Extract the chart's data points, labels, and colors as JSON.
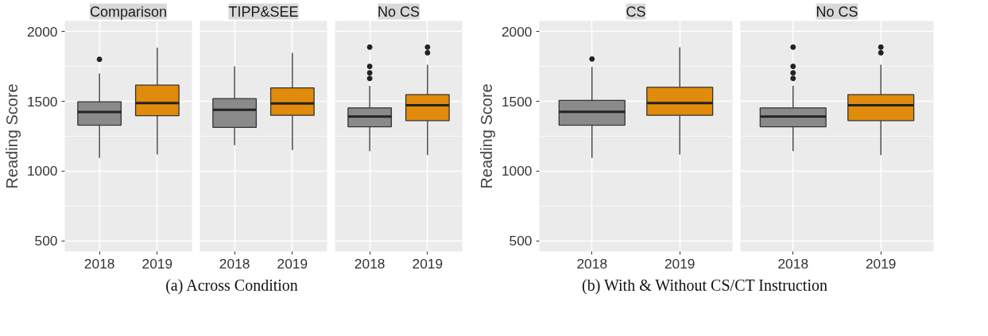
{
  "chart_data": [
    {
      "type": "box",
      "title": "Comparison",
      "ylabel": "Reading Score",
      "categories": [
        "2018",
        "2019"
      ],
      "colors": [
        "#8a8a8a",
        "#e08b0b"
      ],
      "ylim": [
        425,
        2075
      ],
      "yticks": [
        500,
        1000,
        1500,
        2000
      ],
      "grid": true,
      "annotations": [
        "(a) Across Condition"
      ],
      "boxes": [
        {
          "low": 1095,
          "q1": 1329,
          "median": 1424,
          "q3": 1497,
          "high": 1700,
          "outliers": [
            1801
          ]
        },
        {
          "low": 1119,
          "q1": 1397,
          "median": 1488,
          "q3": 1616,
          "high": 1885
        }
      ]
    },
    {
      "type": "box",
      "title": "TIPP&SEE",
      "categories": [
        "2018",
        "2019"
      ],
      "colors": [
        "#8a8a8a",
        "#e08b0b"
      ],
      "ylim": [
        425,
        2075
      ],
      "yticks": [
        500,
        1000,
        1500,
        2000
      ],
      "grid": true,
      "tick_labels": "x",
      "boxes": [
        {
          "low": 1186,
          "q1": 1313,
          "median": 1439,
          "q3": 1519,
          "high": 1750
        },
        {
          "low": 1150,
          "q1": 1400,
          "median": 1484,
          "q3": 1596,
          "high": 1848
        }
      ]
    },
    {
      "type": "box",
      "title": "No CS",
      "categories": [
        "2018",
        "2019"
      ],
      "colors": [
        "#8a8a8a",
        "#e08b0b"
      ],
      "ylim": [
        425,
        2075
      ],
      "yticks": [
        500,
        1000,
        1500,
        2000
      ],
      "grid": true,
      "tick_labels": "x",
      "boxes": [
        {
          "low": 1143,
          "q1": 1318,
          "median": 1391,
          "q3": 1453,
          "high": 1612,
          "outliers": [
            1888,
            1750,
            1704,
            1664
          ]
        },
        {
          "low": 1115,
          "q1": 1362,
          "median": 1472,
          "q3": 1548,
          "high": 1762,
          "outliers": [
            1888,
            1848
          ]
        }
      ]
    },
    {
      "type": "box",
      "title": "CS",
      "ylabel": "Reading Score",
      "categories": [
        "2018",
        "2019"
      ],
      "colors": [
        "#8a8a8a",
        "#e08b0b"
      ],
      "ylim": [
        425,
        2075
      ],
      "yticks": [
        500,
        1000,
        1500,
        2000
      ],
      "grid": true,
      "annotations": [
        "(b) With & Without CS/CT Instruction"
      ],
      "boxes": [
        {
          "low": 1095,
          "q1": 1329,
          "median": 1425,
          "q3": 1507,
          "high": 1746,
          "outliers": [
            1803
          ]
        },
        {
          "low": 1119,
          "q1": 1400,
          "median": 1488,
          "q3": 1601,
          "high": 1887
        }
      ]
    },
    {
      "type": "box",
      "title": "No CS",
      "categories": [
        "2018",
        "2019"
      ],
      "colors": [
        "#8a8a8a",
        "#e08b0b"
      ],
      "ylim": [
        425,
        2075
      ],
      "yticks": [
        500,
        1000,
        1500,
        2000
      ],
      "grid": true,
      "tick_labels": "x",
      "boxes": [
        {
          "low": 1143,
          "q1": 1318,
          "median": 1391,
          "q3": 1453,
          "high": 1612,
          "outliers": [
            1888,
            1750,
            1704,
            1664
          ]
        },
        {
          "low": 1115,
          "q1": 1362,
          "median": 1472,
          "q3": 1548,
          "high": 1762,
          "outliers": [
            1888,
            1848
          ]
        }
      ]
    }
  ]
}
